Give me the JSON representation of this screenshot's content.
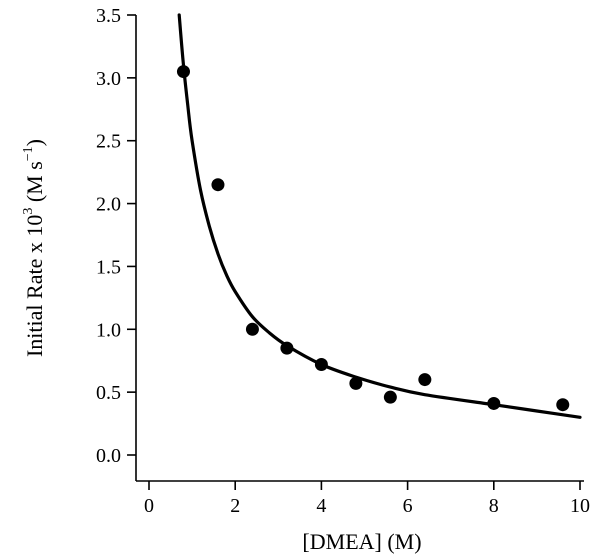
{
  "chart_data": {
    "type": "scatter",
    "title": "",
    "xlabel": "[DMEA] (M)",
    "ylabel": {
      "main": "Initial Rate x 10",
      "exponent": "3",
      "unit_open": " (M s",
      "unit_exponent": "−1",
      "unit_close": ")"
    },
    "xlim": [
      0,
      10
    ],
    "ylim": [
      0,
      3.5
    ],
    "x_ticks": [
      0,
      2,
      4,
      6,
      8,
      10
    ],
    "x_tick_labels": [
      "0",
      "2",
      "4",
      "6",
      "8",
      "10"
    ],
    "y_ticks": [
      0,
      0.5,
      1.0,
      1.5,
      2.0,
      2.5,
      3.0,
      3.5
    ],
    "y_tick_labels": [
      "0.0",
      "0.5",
      "1.0",
      "1.5",
      "2.0",
      "2.5",
      "3.0",
      "3.5"
    ],
    "grid": false,
    "legend": "none",
    "series": [
      {
        "kind": "points",
        "color": "#000000",
        "x": [
          0.8,
          1.6,
          2.4,
          3.2,
          4.0,
          4.8,
          5.6,
          6.4,
          8.0,
          9.6
        ],
        "y": [
          3.05,
          2.15,
          1.0,
          0.85,
          0.72,
          0.57,
          0.46,
          0.6,
          0.41,
          0.4
        ]
      },
      {
        "kind": "fit-curve",
        "color": "#000000",
        "x": [
          0.7,
          0.8,
          0.9,
          1.0,
          1.2,
          1.4,
          1.6,
          1.8,
          2.0,
          2.4,
          2.8,
          3.2,
          4.0,
          4.8,
          5.6,
          6.4,
          8.0,
          9.0,
          10.0
        ],
        "y": [
          3.5,
          3.1,
          2.78,
          2.5,
          2.1,
          1.82,
          1.6,
          1.43,
          1.3,
          1.1,
          0.97,
          0.87,
          0.72,
          0.62,
          0.54,
          0.48,
          0.4,
          0.35,
          0.3
        ]
      }
    ]
  }
}
